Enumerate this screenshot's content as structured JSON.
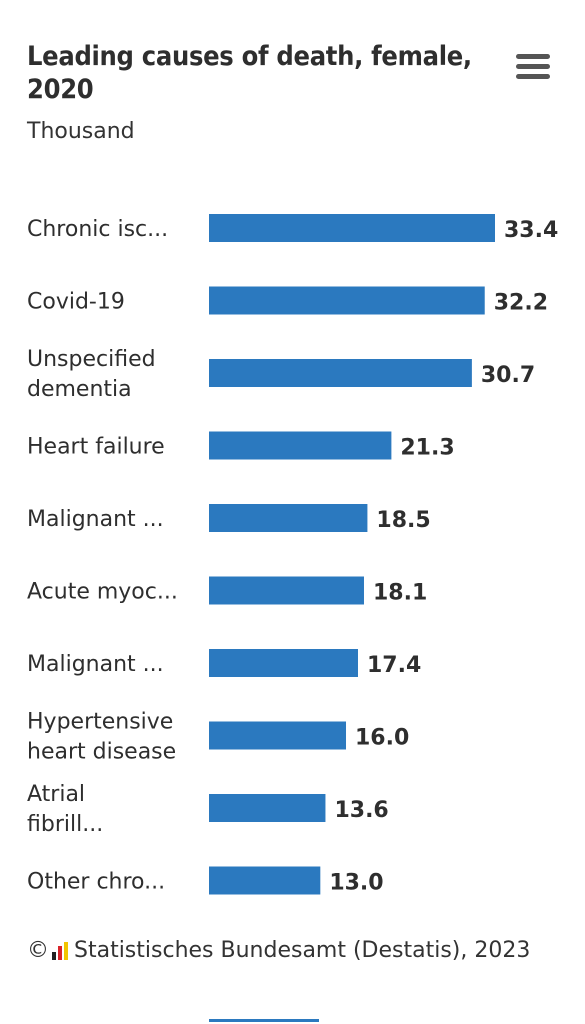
{
  "header": {
    "title": "Leading causes of death, female, 2020",
    "subtitle": "Thousand"
  },
  "menu_icon": "hamburger-menu-icon",
  "footer": {
    "copyright_symbol": "©",
    "logo_icon": "destatis-logo-icon",
    "source": "Statistisches Bundesamt (Destatis), 2023"
  },
  "colors": {
    "bar": "#2b79bf",
    "logo": [
      "#222222",
      "#d8232a",
      "#f2c500"
    ]
  },
  "chart_data": {
    "type": "bar",
    "orientation": "horizontal",
    "categories": [
      "Chronic isc...",
      "Covid-19",
      "Unspecified dementia",
      "Heart failure",
      "Malignant ...",
      "Acute myoc...",
      "Malignant ...",
      "Hypertensive heart disease",
      "Atrial fibrill...",
      "Other chro..."
    ],
    "values": [
      33.4,
      32.2,
      30.7,
      21.3,
      18.5,
      18.1,
      17.4,
      16.0,
      13.6,
      13.0
    ],
    "value_labels": [
      "33.4",
      "32.2",
      "30.7",
      "21.3",
      "18.5",
      "18.1",
      "17.4",
      "16.0",
      "13.6",
      "13.0"
    ],
    "title": "Leading causes of death, female, 2020",
    "subtitle": "Thousand",
    "xlim": [
      0,
      34
    ],
    "grid": false,
    "legend": "none"
  }
}
